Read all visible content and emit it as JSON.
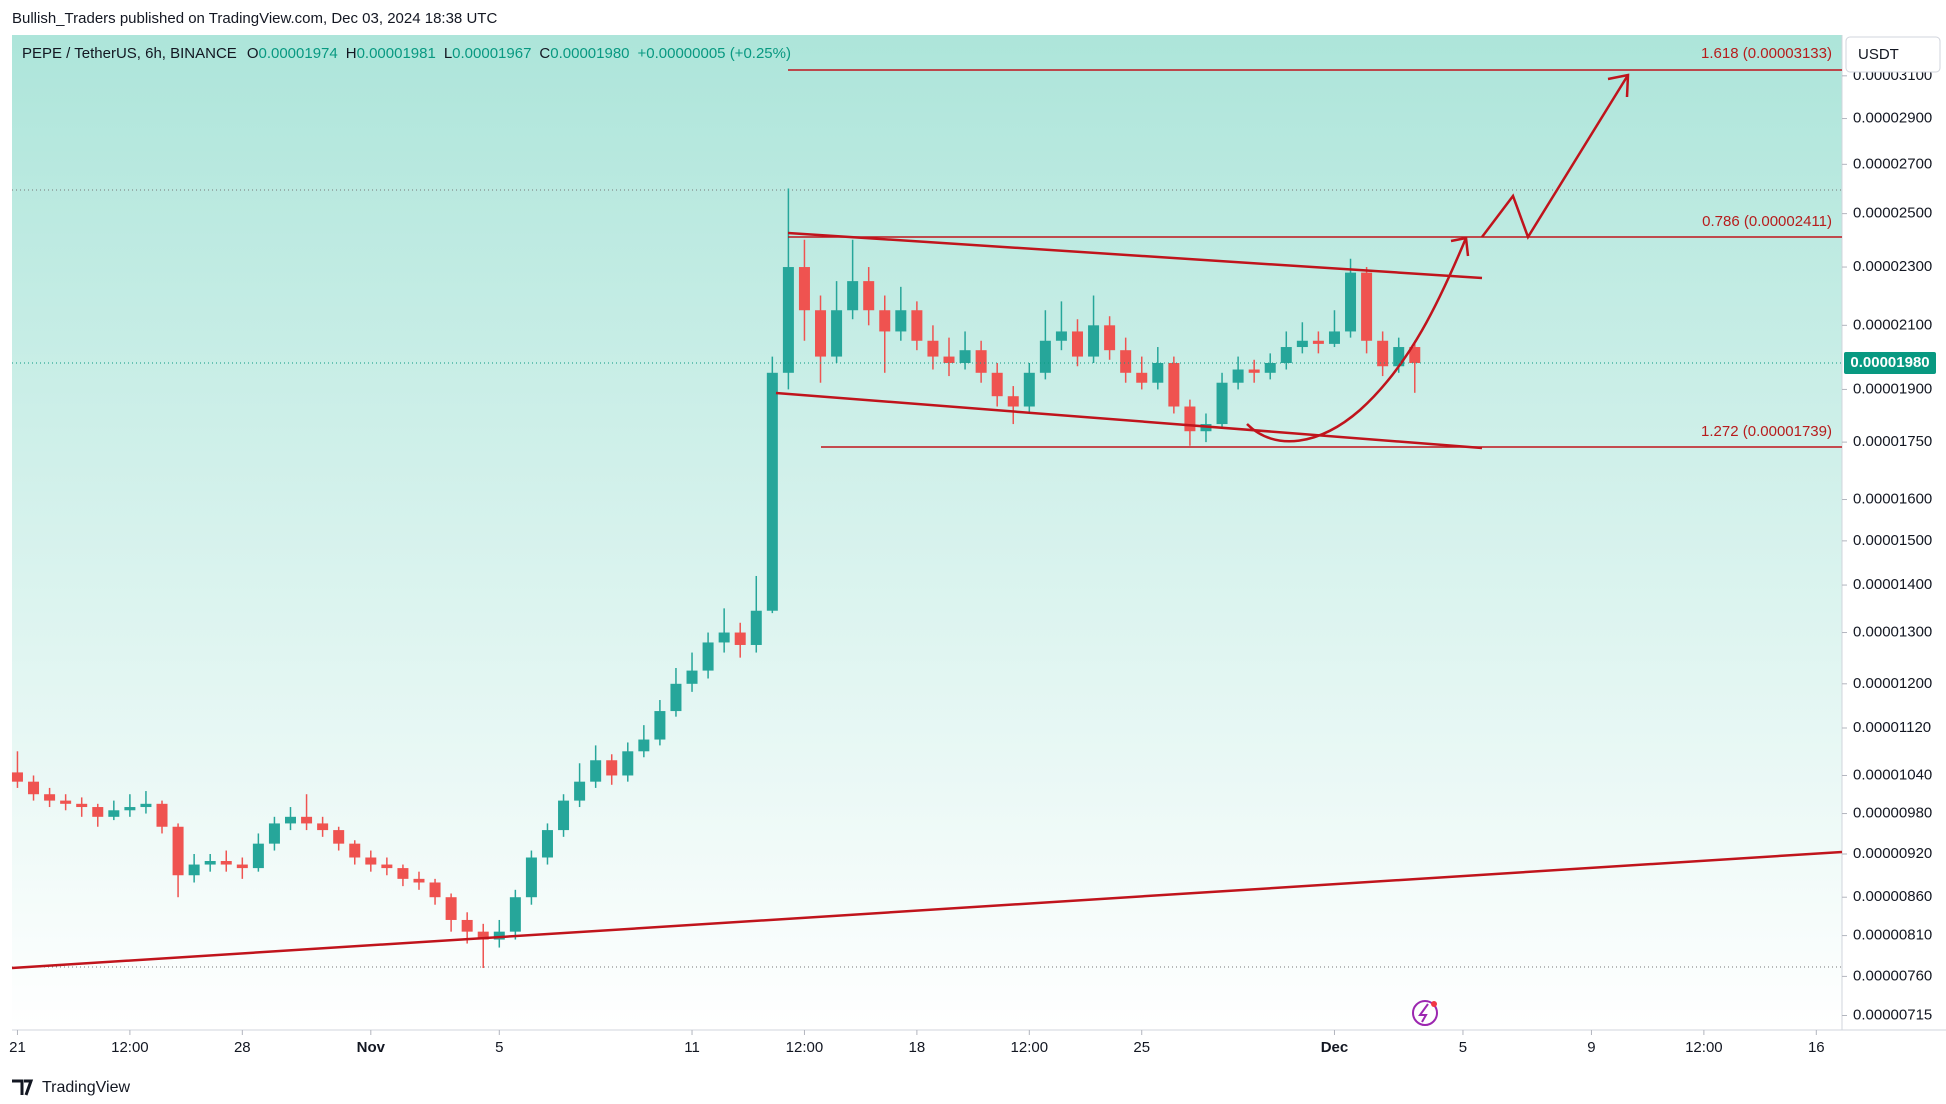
{
  "header": {
    "publisher": "Bullish_Traders published on TradingView.com, Dec 03, 2024 18:38 UTC"
  },
  "legend": {
    "symbol": "PEPE / TetherUS, 6h, BINANCE",
    "o_label": "O",
    "o": "0.00001974",
    "h_label": "H",
    "h": "0.00001981",
    "l_label": "L",
    "l": "0.00001967",
    "c_label": "C",
    "c": "0.00001980",
    "change": "+0.00000005 (+0.25%)"
  },
  "currency": "USDT",
  "footer": "TradingView",
  "chart_data": {
    "type": "candlestick",
    "log_scale": true,
    "up_color": "#26a69a",
    "down_color": "#ef5350",
    "x": [
      0,
      0.5,
      1,
      1.5,
      2,
      2.5,
      3,
      3.5,
      4,
      4.5,
      5,
      5.5,
      6,
      6.5,
      7,
      7.5,
      8,
      8.5,
      9,
      9.5,
      10,
      10.5,
      11,
      11.5,
      12,
      12.5,
      13,
      13.5,
      14,
      14.5,
      15,
      15.5,
      16,
      16.5,
      17,
      17.5,
      18,
      18.5,
      19,
      19.5,
      20,
      20.5,
      21,
      21.5,
      22,
      22.5,
      23,
      23.5,
      24,
      24.5,
      25,
      25.5,
      26,
      26.5,
      27,
      27.5,
      28,
      28.5,
      29,
      29.5,
      30,
      30.5,
      31,
      31.5,
      32,
      32.5,
      33,
      33.5,
      34,
      34.5,
      35,
      35.5,
      36,
      36.5,
      37,
      37.5,
      38,
      38.5,
      39,
      39.5,
      40,
      40.5,
      41,
      41.5,
      42,
      42.5,
      43,
      43.5
    ],
    "open": [
      1.045e-05,
      1.03e-05,
      1.01e-05,
      1e-05,
      9.95e-06,
      9.9e-06,
      9.75e-06,
      9.85e-06,
      9.9e-06,
      9.95e-06,
      9.6e-06,
      8.9e-06,
      9.05e-06,
      9.1e-06,
      9.05e-06,
      9e-06,
      9.35e-06,
      9.65e-06,
      9.75e-06,
      9.65e-06,
      9.55e-06,
      9.35e-06,
      9.15e-06,
      9.05e-06,
      9e-06,
      8.85e-06,
      8.8e-06,
      8.6e-06,
      8.3e-06,
      8.15e-06,
      8.05e-06,
      8.15e-06,
      8.6e-06,
      9.15e-06,
      9.55e-06,
      1e-05,
      1.03e-05,
      1.065e-05,
      1.04e-05,
      1.08e-05,
      1.1e-05,
      1.15e-05,
      1.2e-05,
      1.225e-05,
      1.28e-05,
      1.3e-05,
      1.275e-05,
      1.345e-05,
      1.95e-05,
      2.3e-05,
      2.15e-05,
      2e-05,
      2.15e-05,
      2.25e-05,
      2.15e-05,
      2.08e-05,
      2.15e-05,
      2.05e-05,
      2e-05,
      1.98e-05,
      2.02e-05,
      1.95e-05,
      1.88e-05,
      1.85e-05,
      1.95e-05,
      2.05e-05,
      2.08e-05,
      2e-05,
      2.1e-05,
      2.02e-05,
      1.95e-05,
      1.92e-05,
      1.98e-05,
      1.85e-05,
      1.78e-05,
      1.8e-05,
      1.92e-05,
      1.96e-05,
      1.95e-05,
      1.98e-05,
      2.03e-05,
      2.05e-05,
      2.04e-05,
      2.08e-05,
      2.28e-05,
      2.05e-05,
      1.97e-05,
      2.03e-05
    ],
    "high": [
      1.08e-05,
      1.04e-05,
      1.02e-05,
      1.01e-05,
      1.005e-05,
      9.95e-06,
      1e-05,
      1.01e-05,
      1.015e-05,
      1e-05,
      9.65e-06,
      9.2e-06,
      9.2e-06,
      9.25e-06,
      9.15e-06,
      9.5e-06,
      9.75e-06,
      9.9e-06,
      1.01e-05,
      9.75e-06,
      9.6e-06,
      9.4e-06,
      9.25e-06,
      9.15e-06,
      9.05e-06,
      8.95e-06,
      8.85e-06,
      8.65e-06,
      8.4e-06,
      8.25e-06,
      8.3e-06,
      8.7e-06,
      9.25e-06,
      9.65e-06,
      1.01e-05,
      1.06e-05,
      1.09e-05,
      1.075e-05,
      1.095e-05,
      1.125e-05,
      1.17e-05,
      1.23e-05,
      1.26e-05,
      1.3e-05,
      1.35e-05,
      1.32e-05,
      1.42e-05,
      2e-05,
      2.6e-05,
      2.4e-05,
      2.2e-05,
      2.25e-05,
      2.4e-05,
      2.3e-05,
      2.2e-05,
      2.23e-05,
      2.18e-05,
      2.1e-05,
      2.06e-05,
      2.08e-05,
      2.05e-05,
      1.98e-05,
      1.91e-05,
      1.98e-05,
      2.15e-05,
      2.18e-05,
      2.12e-05,
      2.2e-05,
      2.13e-05,
      2.06e-05,
      2e-05,
      2.03e-05,
      2e-05,
      1.87e-05,
      1.83e-05,
      1.95e-05,
      2e-05,
      1.99e-05,
      2.01e-05,
      2.08e-05,
      2.11e-05,
      2.08e-05,
      2.15e-05,
      2.33e-05,
      2.3e-05,
      2.08e-05,
      2.06e-05,
      2.05e-05
    ],
    "low": [
      1.02e-05,
      1e-05,
      9.9e-06,
      9.85e-06,
      9.75e-06,
      9.6e-06,
      9.7e-06,
      9.75e-06,
      9.8e-06,
      9.5e-06,
      8.6e-06,
      8.8e-06,
      8.95e-06,
      8.95e-06,
      8.85e-06,
      8.95e-06,
      9.25e-06,
      9.55e-06,
      9.55e-06,
      9.45e-06,
      9.25e-06,
      9.05e-06,
      8.95e-06,
      8.9e-06,
      8.75e-06,
      8.7e-06,
      8.5e-06,
      8.15e-06,
      8e-06,
      7.7e-06,
      7.95e-06,
      8.05e-06,
      8.5e-06,
      9.05e-06,
      9.45e-06,
      9.9e-06,
      1.02e-05,
      1.025e-05,
      1.03e-05,
      1.07e-05,
      1.09e-05,
      1.14e-05,
      1.185e-05,
      1.21e-05,
      1.26e-05,
      1.25e-05,
      1.26e-05,
      1.34e-05,
      1.9e-05,
      2.05e-05,
      1.92e-05,
      1.98e-05,
      2.12e-05,
      2.1e-05,
      1.95e-05,
      2.05e-05,
      2.02e-05,
      1.96e-05,
      1.94e-05,
      1.96e-05,
      1.92e-05,
      1.85e-05,
      1.8e-05,
      1.83e-05,
      1.93e-05,
      2.02e-05,
      1.97e-05,
      1.98e-05,
      1.99e-05,
      1.92e-05,
      1.9e-05,
      1.9e-05,
      1.83e-05,
      1.74e-05,
      1.75e-05,
      1.79e-05,
      1.9e-05,
      1.92e-05,
      1.93e-05,
      1.96e-05,
      2.01e-05,
      2.01e-05,
      2.03e-05,
      2.06e-05,
      2.01e-05,
      1.94e-05,
      1.95e-05,
      1.89e-05
    ],
    "close": [
      1.03e-05,
      1.01e-05,
      1e-05,
      9.95e-06,
      9.9e-06,
      9.75e-06,
      9.85e-06,
      9.9e-06,
      9.95e-06,
      9.6e-06,
      8.9e-06,
      9.05e-06,
      9.1e-06,
      9.05e-06,
      9e-06,
      9.35e-06,
      9.65e-06,
      9.75e-06,
      9.65e-06,
      9.55e-06,
      9.35e-06,
      9.15e-06,
      9.05e-06,
      9e-06,
      8.85e-06,
      8.8e-06,
      8.6e-06,
      8.3e-06,
      8.15e-06,
      8.05e-06,
      8.15e-06,
      8.6e-06,
      9.15e-06,
      9.55e-06,
      1e-05,
      1.03e-05,
      1.065e-05,
      1.04e-05,
      1.08e-05,
      1.1e-05,
      1.15e-05,
      1.2e-05,
      1.225e-05,
      1.28e-05,
      1.3e-05,
      1.275e-05,
      1.345e-05,
      1.95e-05,
      2.3e-05,
      2.15e-05,
      2e-05,
      2.15e-05,
      2.25e-05,
      2.15e-05,
      2.08e-05,
      2.15e-05,
      2.05e-05,
      2e-05,
      1.98e-05,
      2.02e-05,
      1.95e-05,
      1.88e-05,
      1.85e-05,
      1.95e-05,
      2.05e-05,
      2.08e-05,
      2e-05,
      2.1e-05,
      2.02e-05,
      1.95e-05,
      1.92e-05,
      1.98e-05,
      1.85e-05,
      1.78e-05,
      1.8e-05,
      1.92e-05,
      1.96e-05,
      1.95e-05,
      1.98e-05,
      2.03e-05,
      2.05e-05,
      2.04e-05,
      2.08e-05,
      2.28e-05,
      2.05e-05,
      1.97e-05,
      2.03e-05,
      1.98e-05
    ],
    "xlim": [
      -0.17,
      56.8
    ],
    "xticks": [
      {
        "value": 0,
        "label": "21"
      },
      {
        "value": 3.5,
        "label": "12:00"
      },
      {
        "value": 7,
        "label": "28"
      },
      {
        "value": 11,
        "label": "Nov"
      },
      {
        "value": 15,
        "label": "5"
      },
      {
        "value": 21,
        "label": "11"
      },
      {
        "value": 24.5,
        "label": "12:00"
      },
      {
        "value": 28,
        "label": "18"
      },
      {
        "value": 31.5,
        "label": "12:00"
      },
      {
        "value": 35,
        "label": "25"
      },
      {
        "value": 41,
        "label": "Dec"
      },
      {
        "value": 45,
        "label": "5"
      },
      {
        "value": 49,
        "label": "9"
      },
      {
        "value": 52.5,
        "label": "12:00"
      },
      {
        "value": 56,
        "label": "16"
      }
    ],
    "ylim": [
      6.99e-06,
      3.304e-05
    ],
    "yticks": [
      {
        "value": 3.1e-05,
        "label": "0.00003100"
      },
      {
        "value": 2.9e-05,
        "label": "0.00002900"
      },
      {
        "value": 2.7e-05,
        "label": "0.00002700"
      },
      {
        "value": 2.5e-05,
        "label": "0.00002500"
      },
      {
        "value": 2.3e-05,
        "label": "0.00002300"
      },
      {
        "value": 2.1e-05,
        "label": "0.00002100"
      },
      {
        "value": 1.9e-05,
        "label": "0.00001900"
      },
      {
        "value": 1.75e-05,
        "label": "0.00001750"
      },
      {
        "value": 1.6e-05,
        "label": "0.00001600"
      },
      {
        "value": 1.5e-05,
        "label": "0.00001500"
      },
      {
        "value": 1.4e-05,
        "label": "0.00001400"
      },
      {
        "value": 1.3e-05,
        "label": "0.00001300"
      },
      {
        "value": 1.2e-05,
        "label": "0.00001200"
      },
      {
        "value": 1.12e-05,
        "label": "0.00001120"
      },
      {
        "value": 1.04e-05,
        "label": "0.00001040"
      },
      {
        "value": 9.8e-06,
        "label": "0.00000980"
      },
      {
        "value": 9.2e-06,
        "label": "0.00000920"
      },
      {
        "value": 8.6e-06,
        "label": "0.00000860"
      },
      {
        "value": 8.1e-06,
        "label": "0.00000810"
      },
      {
        "value": 7.6e-06,
        "label": "0.00000760"
      },
      {
        "value": 7.15e-06,
        "label": "0.00000715"
      }
    ],
    "last_price": {
      "value": 1.98e-05,
      "label": "0.00001980"
    },
    "annotations": [
      "1.618 (0.00003133)",
      "0.786 (0.00002411)",
      "1.272 (0.00001739)"
    ]
  }
}
